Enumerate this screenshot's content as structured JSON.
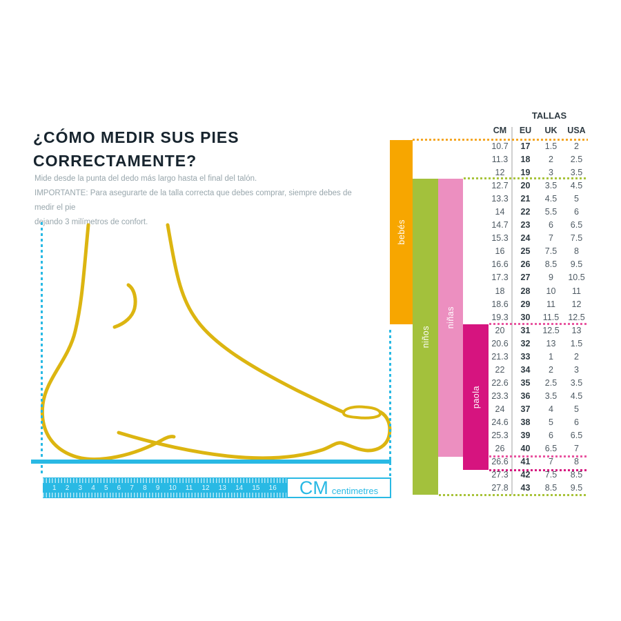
{
  "page": {
    "title_line1": "¿CÓMO MEDIR SUS PIES",
    "title_line2": "CORRECTAMENTE?",
    "instruction_lines": [
      "Mide desde la punta del dedo más largo hasta el final del talón.",
      "IMPORTANTE: Para asegurarte de la talla correcta que debes comprar, siempre debes de medir el pie",
      "dejando 3 milímetros de confort."
    ]
  },
  "ruler": {
    "numbers": [
      "1",
      "2",
      "3",
      "4",
      "5",
      "6",
      "7",
      "8",
      "9",
      "10",
      "11",
      "12",
      "13",
      "14",
      "15",
      "16"
    ],
    "unit_label": "CM",
    "unit_sublabel": "centimetres"
  },
  "size_table": {
    "title": "TALLAS",
    "columns": [
      "CM",
      "EU",
      "UK",
      "USA"
    ],
    "rows": [
      [
        "10.7",
        "17",
        "1.5",
        "2"
      ],
      [
        "11.3",
        "18",
        "2",
        "2.5"
      ],
      [
        "12",
        "19",
        "3",
        "3.5"
      ],
      [
        "12.7",
        "20",
        "3.5",
        "4.5"
      ],
      [
        "13.3",
        "21",
        "4.5",
        "5"
      ],
      [
        "14",
        "22",
        "5.5",
        "6"
      ],
      [
        "14.7",
        "23",
        "6",
        "6.5"
      ],
      [
        "15.3",
        "24",
        "7",
        "7.5"
      ],
      [
        "16",
        "25",
        "7.5",
        "8"
      ],
      [
        "16.6",
        "26",
        "8.5",
        "9.5"
      ],
      [
        "17.3",
        "27",
        "9",
        "10.5"
      ],
      [
        "18",
        "28",
        "10",
        "11"
      ],
      [
        "18.6",
        "29",
        "11",
        "12"
      ],
      [
        "19.3",
        "30",
        "11.5",
        "12.5"
      ],
      [
        "20",
        "31",
        "12.5",
        "13"
      ],
      [
        "20.6",
        "32",
        "13",
        "1.5"
      ],
      [
        "21.3",
        "33",
        "1",
        "2"
      ],
      [
        "22",
        "34",
        "2",
        "3"
      ],
      [
        "22.6",
        "35",
        "2.5",
        "3.5"
      ],
      [
        "23.3",
        "36",
        "3.5",
        "4.5"
      ],
      [
        "24",
        "37",
        "4",
        "5"
      ],
      [
        "24.6",
        "38",
        "5",
        "6"
      ],
      [
        "25.3",
        "39",
        "6",
        "6.5"
      ],
      [
        "26",
        "40",
        "6.5",
        "7"
      ],
      [
        "26.6",
        "41",
        "7",
        "8"
      ],
      [
        "27.3",
        "42",
        "7.5",
        "8.5"
      ],
      [
        "27.8",
        "43",
        "8.5",
        "9.5"
      ]
    ],
    "groups": [
      {
        "label": "bebés",
        "sizes": "17-30"
      },
      {
        "label": "niños",
        "sizes": "20-43"
      },
      {
        "label": "niñas",
        "sizes": "20-40"
      },
      {
        "label": "paola",
        "sizes": "31-41"
      }
    ]
  },
  "colors": {
    "cyan": "#29B9E4",
    "foot_yellow": "#DCB511",
    "bar_bebes": "#F7A600",
    "bar_ninos": "#A3C13C",
    "bar_ninas": "#EC8FC0",
    "bar_paola": "#D6147F",
    "dot_orange": "#F5A623",
    "dot_green": "#A8C33A",
    "dot_pink": "#E8549F",
    "dot_magenta": "#D6147F",
    "title_text": "#17242E",
    "body_text": "#98A6AC",
    "table_text": "#4E5A63",
    "table_bold": "#2E3A42",
    "gray_line": "#CFCFCF"
  }
}
